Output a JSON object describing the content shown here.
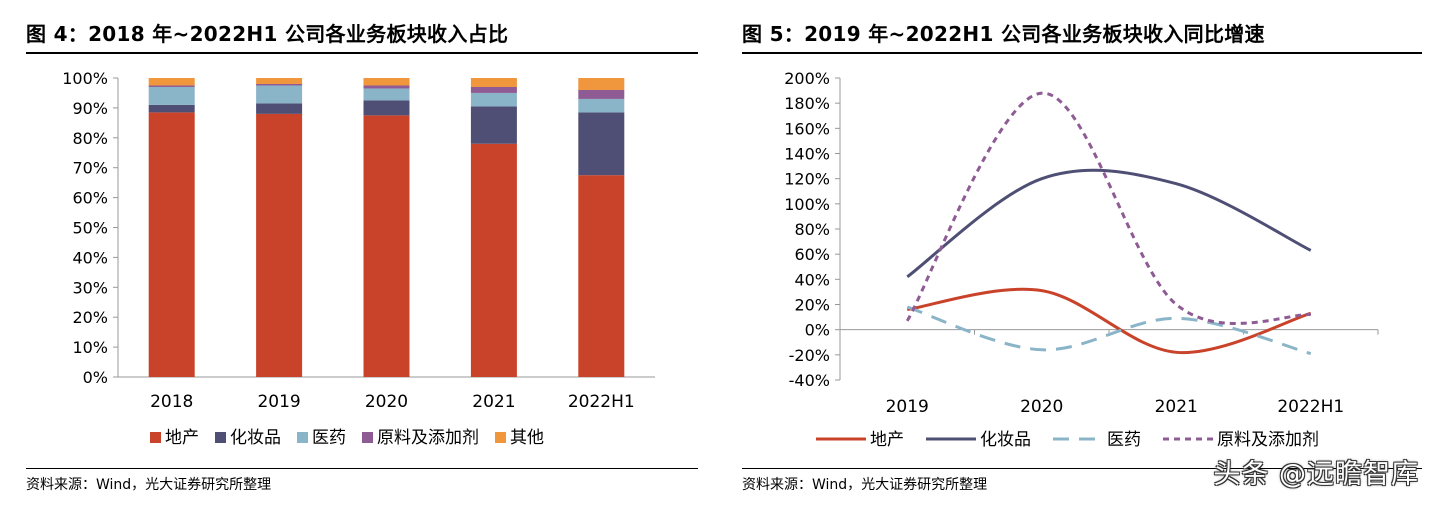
{
  "chart_data": [
    {
      "type": "bar",
      "stacked": true,
      "title": "图 4：2018 年~2022H1 公司各业务板块收入占比",
      "categories": [
        "2018",
        "2019",
        "2020",
        "2021",
        "2022H1"
      ],
      "series": [
        {
          "name": "地产",
          "color": "#C9432A",
          "values": [
            88.5,
            88.0,
            87.5,
            78.0,
            67.5
          ]
        },
        {
          "name": "化妆品",
          "color": "#4F4F75",
          "values": [
            2.5,
            3.5,
            5.0,
            12.5,
            21.0
          ]
        },
        {
          "name": "医药",
          "color": "#8AB4C8",
          "values": [
            6.0,
            6.0,
            4.0,
            4.5,
            4.5
          ]
        },
        {
          "name": "原料及添加剂",
          "color": "#8E5B94",
          "values": [
            0.5,
            0.5,
            1.0,
            2.0,
            3.0
          ]
        },
        {
          "name": "其他",
          "color": "#F0963C",
          "values": [
            2.5,
            2.0,
            2.5,
            3.0,
            4.0
          ]
        }
      ],
      "ylim": [
        0,
        100
      ],
      "yticks": [
        "0%",
        "10%",
        "20%",
        "30%",
        "40%",
        "50%",
        "60%",
        "70%",
        "80%",
        "90%",
        "100%"
      ],
      "legend_position": "bottom",
      "source": "资料来源：Wind，光大证券研究所整理"
    },
    {
      "type": "line",
      "smooth": true,
      "title": "图 5：2019 年~2022H1 公司各业务板块收入同比增速",
      "categories": [
        "2019",
        "2020",
        "2021",
        "2022H1"
      ],
      "series": [
        {
          "name": "地产",
          "color": "#C9432A",
          "dash": "solid",
          "values": [
            16,
            31,
            -18,
            13
          ]
        },
        {
          "name": "化妆品",
          "color": "#4F4F75",
          "dash": "solid",
          "values": [
            42,
            120,
            116,
            63
          ]
        },
        {
          "name": "医药",
          "color": "#8AB4C8",
          "dash": "longdash",
          "values": [
            18,
            -16,
            9,
            -19
          ]
        },
        {
          "name": "原料及添加剂",
          "color": "#8E5B94",
          "dash": "dash",
          "values": [
            7,
            188,
            20,
            12
          ]
        }
      ],
      "ylim": [
        -40,
        200
      ],
      "yticks": [
        "-40%",
        "-20%",
        "0%",
        "20%",
        "40%",
        "60%",
        "80%",
        "100%",
        "120%",
        "140%",
        "160%",
        "180%",
        "200%"
      ],
      "legend_position": "bottom",
      "source": "资料来源：Wind，光大证券研究所整理"
    }
  ],
  "watermark": "头条 @远瞻智库"
}
